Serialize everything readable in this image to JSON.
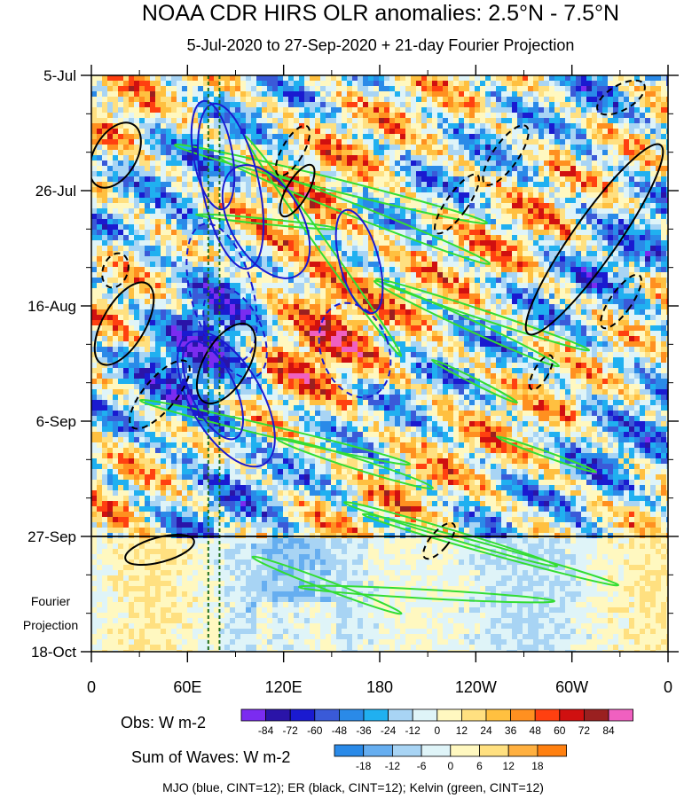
{
  "chart_data": {
    "type": "heatmap",
    "title": "NOAA CDR HIRS OLR anomalies: 2.5°N - 7.5°N",
    "subtitle": "5-Jul-2020 to 27-Sep-2020 + 21-day Fourier Projection",
    "y_axis": {
      "ticks": [
        "5-Jul",
        "26-Jul",
        "16-Aug",
        "6-Sep",
        "27-Sep",
        "18-Oct"
      ],
      "ticks_days": [
        0,
        21,
        42,
        63,
        84,
        105
      ],
      "fourier_label": "Fourier\nProjection",
      "observation_end_day": 84
    },
    "x_axis": {
      "ticks": [
        "0",
        "60E",
        "120E",
        "180",
        "120W",
        "60W",
        "0"
      ],
      "ticks_lon": [
        0,
        60,
        120,
        180,
        240,
        300,
        360
      ],
      "range": [
        0,
        360
      ]
    },
    "highlight_longitudes": [
      73,
      80
    ],
    "obs_colorbar": {
      "title": "Obs: W m-2",
      "labels": [
        "-84",
        "-72",
        "-60",
        "-48",
        "-36",
        "-24",
        "-12",
        "0",
        "12",
        "24",
        "36",
        "48",
        "60",
        "72",
        "84"
      ],
      "colors": [
        "#7b2cf0",
        "#2a14a8",
        "#1a1ad0",
        "#3a5ad8",
        "#2a8ae8",
        "#20b0f0",
        "#a8d4f4",
        "#dff4f8",
        "#fff8c0",
        "#ffe080",
        "#ffc040",
        "#ff9020",
        "#ff4010",
        "#d01010",
        "#9a2020",
        "#f060c0"
      ]
    },
    "waves_colorbar": {
      "title": "Sum of Waves: W m-2",
      "labels": [
        "-18",
        "-12",
        "-6",
        "0",
        "6",
        "12",
        "18"
      ],
      "colors": [
        "#2a8ae8",
        "#66aef0",
        "#a8d4f4",
        "#dff4f8",
        "#fff8c0",
        "#ffe080",
        "#ffb040",
        "#ff8010"
      ]
    },
    "caption": "MJO (blue, CINT=12); ER (black, CINT=12); Kelvin (green, CINT=12)",
    "series": [
      {
        "name": "MJO",
        "color": "#1a1ad0",
        "cint": 12
      },
      {
        "name": "ER",
        "color": "#000000",
        "cint": 12
      },
      {
        "name": "Kelvin",
        "color": "#33dd33",
        "cint": 12
      }
    ]
  }
}
